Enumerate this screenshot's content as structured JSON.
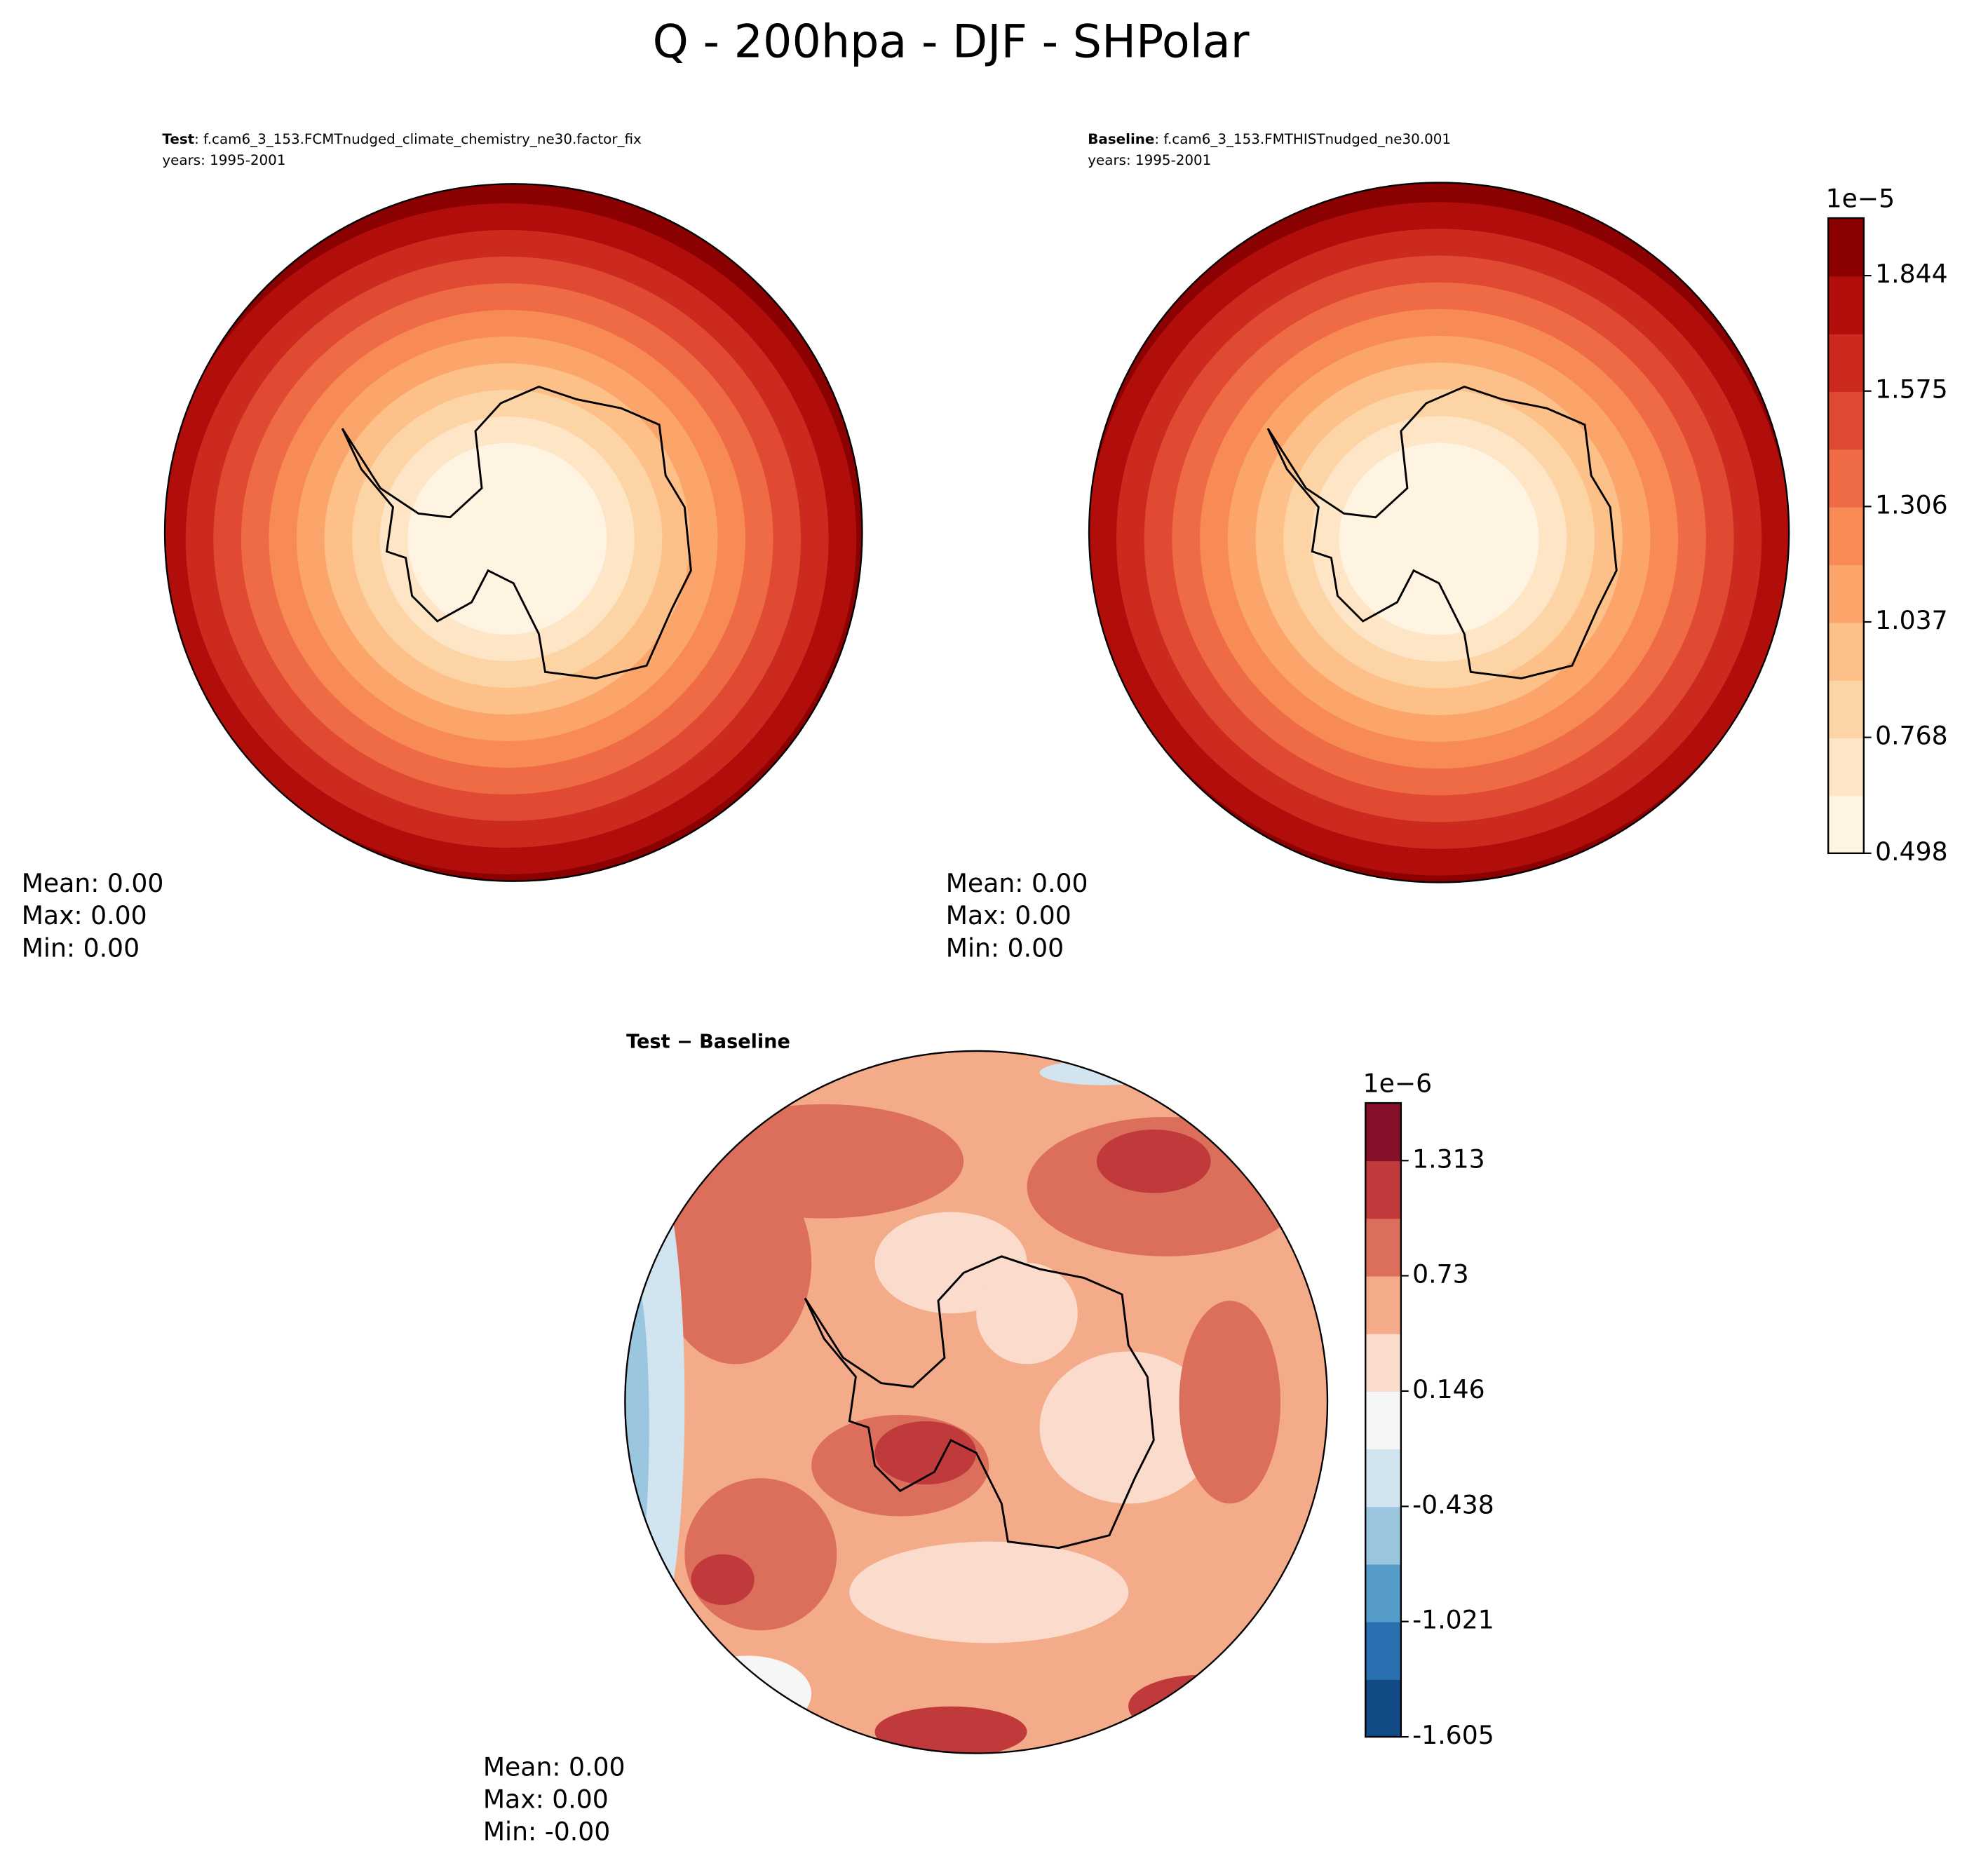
{
  "chart_data": {
    "type": "polar-contour",
    "title": "Q - 200hpa - DJF - SHPolar",
    "panels": [
      {
        "label": "Test",
        "case": ": f.cam6_3_153.FCMTnudged_climate_chemistry_ne30.factor_fix",
        "years": "years: 1995-2001",
        "stats": [
          "Mean:  0.00",
          "Max:  0.00",
          "Min:  0.00"
        ]
      },
      {
        "label": "Baseline",
        "case": ": f.cam6_3_153.FMTHISTnudged_ne30.001",
        "years": "years: 1995-2001",
        "stats": [
          "Mean:  0.00",
          "Max:  0.00",
          "Min:  0.00"
        ]
      },
      {
        "label": "Test − Baseline",
        "stats": [
          "Mean:  0.00",
          "Max:  0.00",
          "Min: -0.00"
        ]
      }
    ],
    "colorbars": [
      {
        "exponent": "1e−5",
        "lim": [
          0.498,
          1.978
        ],
        "ticks": [
          0.498,
          0.768,
          1.037,
          1.306,
          1.575,
          1.844
        ],
        "colors": [
          "#fff3e2",
          "#fde5c6",
          "#fdd4a6",
          "#fdc088",
          "#fca56b",
          "#f88a55",
          "#ef6b45",
          "#e04a33",
          "#cc2a1e",
          "#b10d0b",
          "#8b0000"
        ]
      },
      {
        "exponent": "1e−6",
        "lim": [
          -1.605,
          1.605
        ],
        "ticks": [
          -1.605,
          -1.021,
          -0.438,
          0.146,
          0.73,
          1.313
        ],
        "colors": [
          "#124a85",
          "#2a70b0",
          "#559dc8",
          "#9ac6df",
          "#d1e4ef",
          "#f6f6f6",
          "#fbdbcb",
          "#f4ab89",
          "#dc6f5c",
          "#c13a3b",
          "#860f29"
        ]
      }
    ]
  }
}
